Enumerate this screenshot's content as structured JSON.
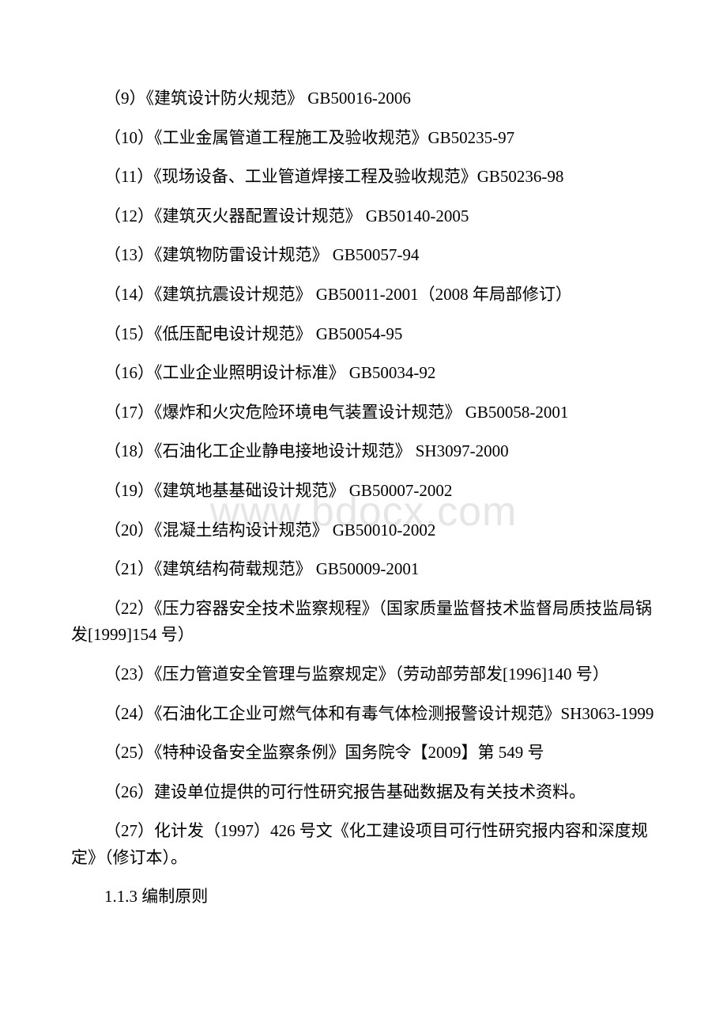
{
  "watermark": "www.bdocx.com",
  "items": [
    "（9）《建筑设计防火规范》 GB50016-2006",
    "（10）《工业金属管道工程施工及验收规范》GB50235-97",
    "（11）《现场设备、工业管道焊接工程及验收规范》GB50236-98",
    "（12）《建筑灭火器配置设计规范》 GB50140-2005",
    "（13）《建筑物防雷设计规范》 GB50057-94",
    "（14）《建筑抗震设计规范》 GB50011-2001（2008 年局部修订）",
    "（15）《低压配电设计规范》 GB50054-95",
    "（16）《工业企业照明设计标准》 GB50034-92",
    "（17）《爆炸和火灾危险环境电气装置设计规范》 GB50058-2001",
    "（18）《石油化工企业静电接地设计规范》 SH3097-2000",
    "（19）《建筑地基基础设计规范》 GB50007-2002",
    "（20）《混凝土结构设计规范》 GB50010-2002",
    "（21）《建筑结构荷载规范》 GB50009-2001",
    "（22）《压力容器安全技术监察规程》（国家质量监督技术监督局质技监局锅发[1999]154 号）",
    "（23）《压力管道安全管理与监察规定》（劳动部劳部发[1996]140 号）",
    "（24）《石油化工企业可燃气体和有毒气体检测报警设计规范》SH3063-1999",
    "（25）《特种设备安全监察条例》国务院令【2009】第 549 号",
    "（26）建设单位提供的可行性研究报告基础数据及有关技术资料。",
    "（27）化计发（1997）426 号文《化工建设项目可行性研究报内容和深度规定》（修订本）。"
  ],
  "section": "1.1.3 编制原则",
  "wrap_items": [
    13,
    15,
    16,
    21,
    22,
    23,
    25,
    26
  ],
  "colors": {
    "text": "#000000",
    "background": "#ffffff",
    "watermark": "rgba(200, 200, 200, 0.45)"
  },
  "typography": {
    "body_fontsize": 21,
    "watermark_fontsize": 52,
    "line_height": 1.6,
    "text_indent_em": 2
  }
}
